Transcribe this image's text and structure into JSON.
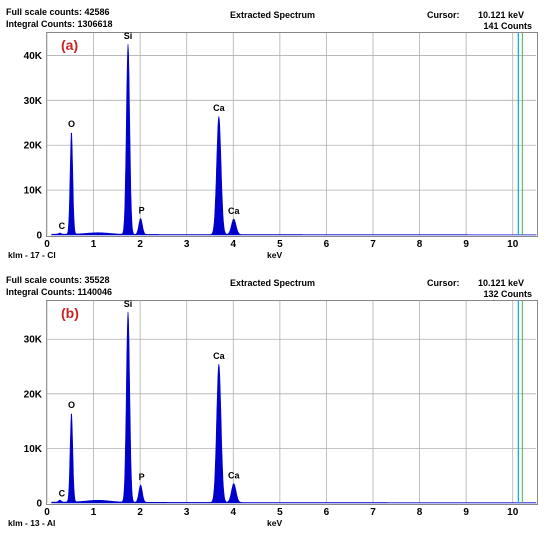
{
  "panels": [
    {
      "header": {
        "full_scale": "Full scale counts: 42586",
        "integral": "Integral Counts: 1306618",
        "title": "Extracted Spectrum",
        "cursor_label": "Cursor:",
        "cursor_value": "10.121 keV",
        "counts": "141 Counts"
      },
      "panel_label": "(a)",
      "sample": "klm - 17 - Cl"
    },
    {
      "header": {
        "full_scale": "Full scale counts: 35528",
        "integral": "Integral Counts: 1140046",
        "title": "Extracted Spectrum",
        "cursor_label": "Cursor:",
        "cursor_value": "10.121 keV",
        "counts": "132 Counts"
      },
      "panel_label": "(b)",
      "sample": "klm - 13 - Al"
    }
  ],
  "colors": {
    "spectrum": "#0000cc",
    "cursor": "#00bcd4",
    "panel_label": "#cc2222",
    "grid": "#b0b0b0"
  },
  "chart_data": [
    {
      "type": "line",
      "xlabel": "keV",
      "ylabel": "",
      "xlim": [
        0,
        10.5
      ],
      "ylim": [
        0,
        45000
      ],
      "x_ticks": [
        "0",
        "1",
        "2",
        "3",
        "4",
        "5",
        "6",
        "7",
        "8",
        "9",
        "10"
      ],
      "y_ticks": [
        "0",
        "10K",
        "20K",
        "30K",
        "40K"
      ],
      "y_tick_values": [
        0,
        10000,
        20000,
        30000,
        40000
      ],
      "cursor_kev": 10.121,
      "background_counts": 150,
      "peaks": [
        {
          "label": "C",
          "kev": 0.277,
          "counts": 400
        },
        {
          "label": "O",
          "kev": 0.525,
          "counts": 23000
        },
        {
          "label": "Si",
          "kev": 1.74,
          "counts": 42500
        },
        {
          "label": "P",
          "kev": 2.01,
          "counts": 3700
        },
        {
          "label": "Ca",
          "kev": 3.69,
          "counts": 26500
        },
        {
          "label": "Ca",
          "kev": 4.01,
          "counts": 3600
        }
      ],
      "grid": true
    },
    {
      "type": "line",
      "xlabel": "keV",
      "ylabel": "",
      "xlim": [
        0,
        10.5
      ],
      "ylim": [
        0,
        37000
      ],
      "x_ticks": [
        "0",
        "1",
        "2",
        "3",
        "4",
        "5",
        "6",
        "7",
        "8",
        "9",
        "10"
      ],
      "y_ticks": [
        "0",
        "10K",
        "20K",
        "30K"
      ],
      "y_tick_values": [
        0,
        10000,
        20000,
        30000
      ],
      "cursor_kev": 10.121,
      "background_counts": 150,
      "peaks": [
        {
          "label": "C",
          "kev": 0.277,
          "counts": 500
        },
        {
          "label": "O",
          "kev": 0.525,
          "counts": 16500
        },
        {
          "label": "Si",
          "kev": 1.74,
          "counts": 35000
        },
        {
          "label": "P",
          "kev": 2.01,
          "counts": 3300
        },
        {
          "label": "Ca",
          "kev": 3.69,
          "counts": 25500
        },
        {
          "label": "Ca",
          "kev": 4.01,
          "counts": 3600
        }
      ],
      "grid": true
    }
  ]
}
